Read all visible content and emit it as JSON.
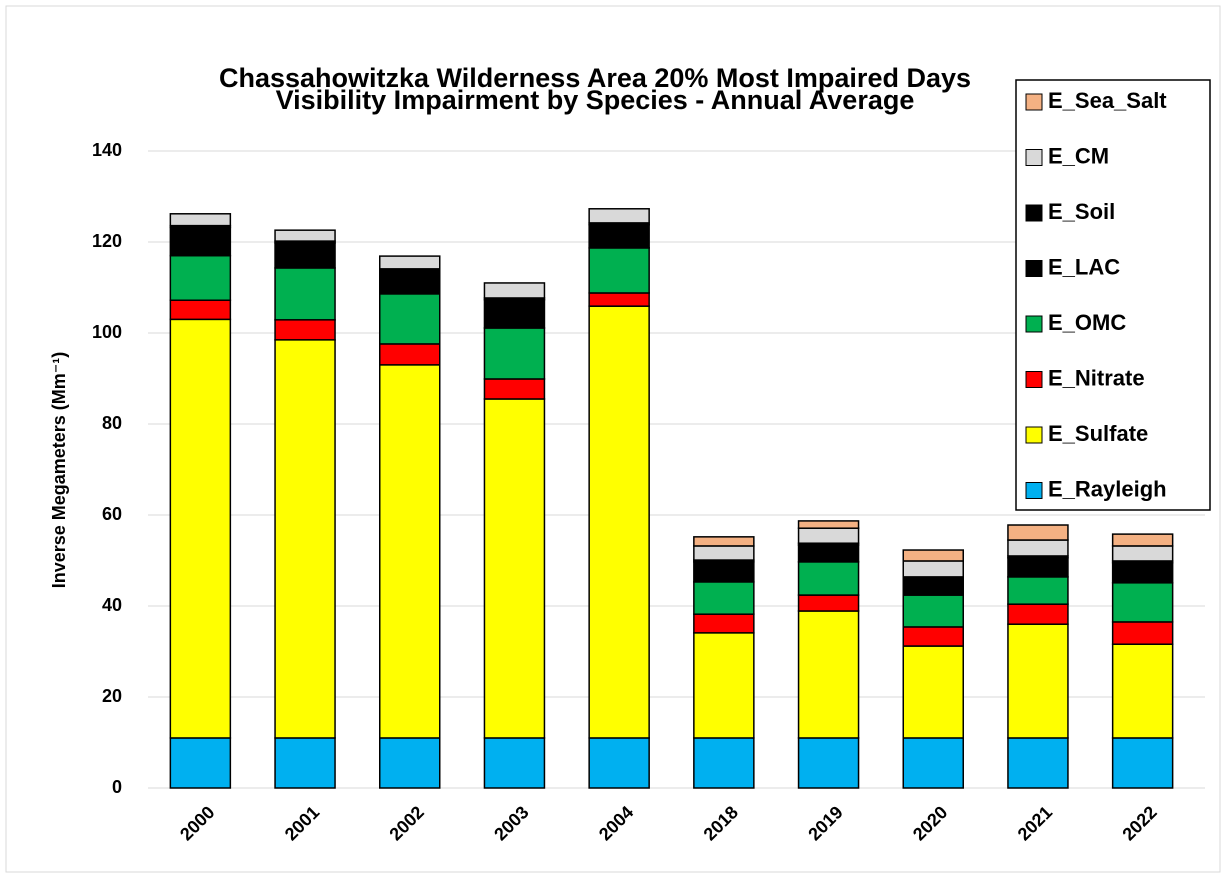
{
  "chart_data": {
    "type": "stacked_bar",
    "title": [
      "Chassahowitzka Wilderness Area 20% Most Impaired Days",
      "Visibility Impairment by Species - Annual Average"
    ],
    "y_label": "Inverse Megameters (Mm⁻¹)",
    "categories": [
      "2000",
      "2001",
      "2002",
      "2003",
      "2004",
      "2018",
      "2019",
      "2020",
      "2021",
      "2022"
    ],
    "series": [
      {
        "name": "E_Rayleigh",
        "color": "#00b0f0",
        "values": [
          11,
          11,
          11,
          11,
          11,
          11,
          11,
          11,
          11,
          11
        ]
      },
      {
        "name": "E_Sulfate",
        "color": "#ffff00",
        "values": [
          92,
          87.5,
          82,
          74.5,
          94.9,
          23.1,
          27.9,
          20.2,
          25,
          20.6
        ]
      },
      {
        "name": "E_Nitrate",
        "color": "#ff0000",
        "values": [
          4.2,
          4.4,
          4.6,
          4.4,
          2.9,
          4.1,
          3.5,
          4.2,
          4.4,
          4.9
        ]
      },
      {
        "name": "E_OMC",
        "color": "#00b050",
        "values": [
          9.8,
          11.4,
          11,
          11.2,
          9.9,
          7.1,
          7.3,
          7,
          6,
          8.6
        ]
      },
      {
        "name": "E_LAC",
        "color": "#000000",
        "values": [
          6.2,
          5.5,
          5.1,
          6.2,
          5.1,
          4.4,
          3.7,
          3.6,
          4.2,
          4.4
        ]
      },
      {
        "name": "E_Soil",
        "color": "#000000",
        "values": [
          0.4,
          0.4,
          0.4,
          0.4,
          0.4,
          0.4,
          0.4,
          0.4,
          0.4,
          0.4
        ]
      },
      {
        "name": "E_CM",
        "color": "#d9d9d9",
        "values": [
          2.6,
          2.4,
          2.8,
          3.3,
          3.1,
          3.1,
          3.3,
          3.5,
          3.5,
          3.3
        ]
      },
      {
        "name": "E_Sea_Salt",
        "color": "#f4b183",
        "values": [
          0,
          0,
          0,
          0,
          0,
          2,
          1.6,
          2.4,
          3.3,
          2.6
        ]
      }
    ],
    "ylim": [
      0,
      140
    ],
    "yticks": [
      0,
      20,
      40,
      60,
      80,
      100,
      120,
      140
    ],
    "grid": true,
    "legend": "right"
  }
}
